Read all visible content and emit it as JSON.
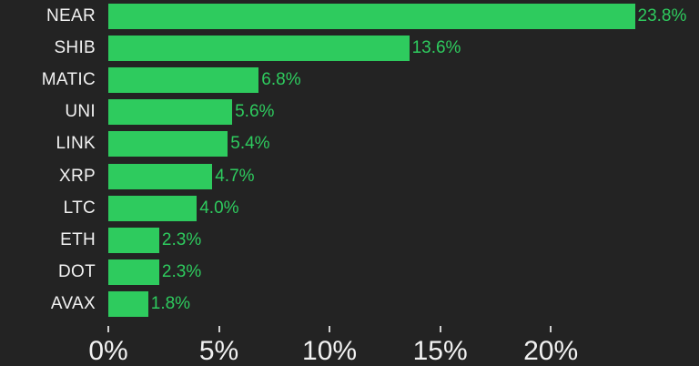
{
  "chart_data": {
    "type": "bar",
    "orientation": "horizontal",
    "title": "",
    "xlabel": "",
    "ylabel": "",
    "categories": [
      "NEAR",
      "SHIB",
      "MATIC",
      "UNI",
      "LINK",
      "XRP",
      "LTC",
      "ETH",
      "DOT",
      "AVAX"
    ],
    "values": [
      23.8,
      13.6,
      6.8,
      5.6,
      5.4,
      4.7,
      4.0,
      2.3,
      2.3,
      1.8
    ],
    "value_labels": [
      "23.8%",
      "13.6%",
      "6.8%",
      "5.6%",
      "5.4%",
      "4.7%",
      "4.0%",
      "2.3%",
      "2.3%",
      "1.8%"
    ],
    "xlim": [
      0,
      26.7
    ],
    "xticks": [
      {
        "value": 0,
        "label": "0%"
      },
      {
        "value": 5,
        "label": "5%"
      },
      {
        "value": 10,
        "label": "10%"
      },
      {
        "value": 15,
        "label": "15%"
      },
      {
        "value": 20,
        "label": "20%"
      }
    ],
    "grid": false,
    "legend": false,
    "colors": {
      "background": "#232323",
      "bar": "#2ecb5e",
      "value_label": "#2ecb5e",
      "category_label": "#f2f2f2",
      "axis_label": "#f2f2f2",
      "tick_mark": "#cfcfcf"
    }
  }
}
